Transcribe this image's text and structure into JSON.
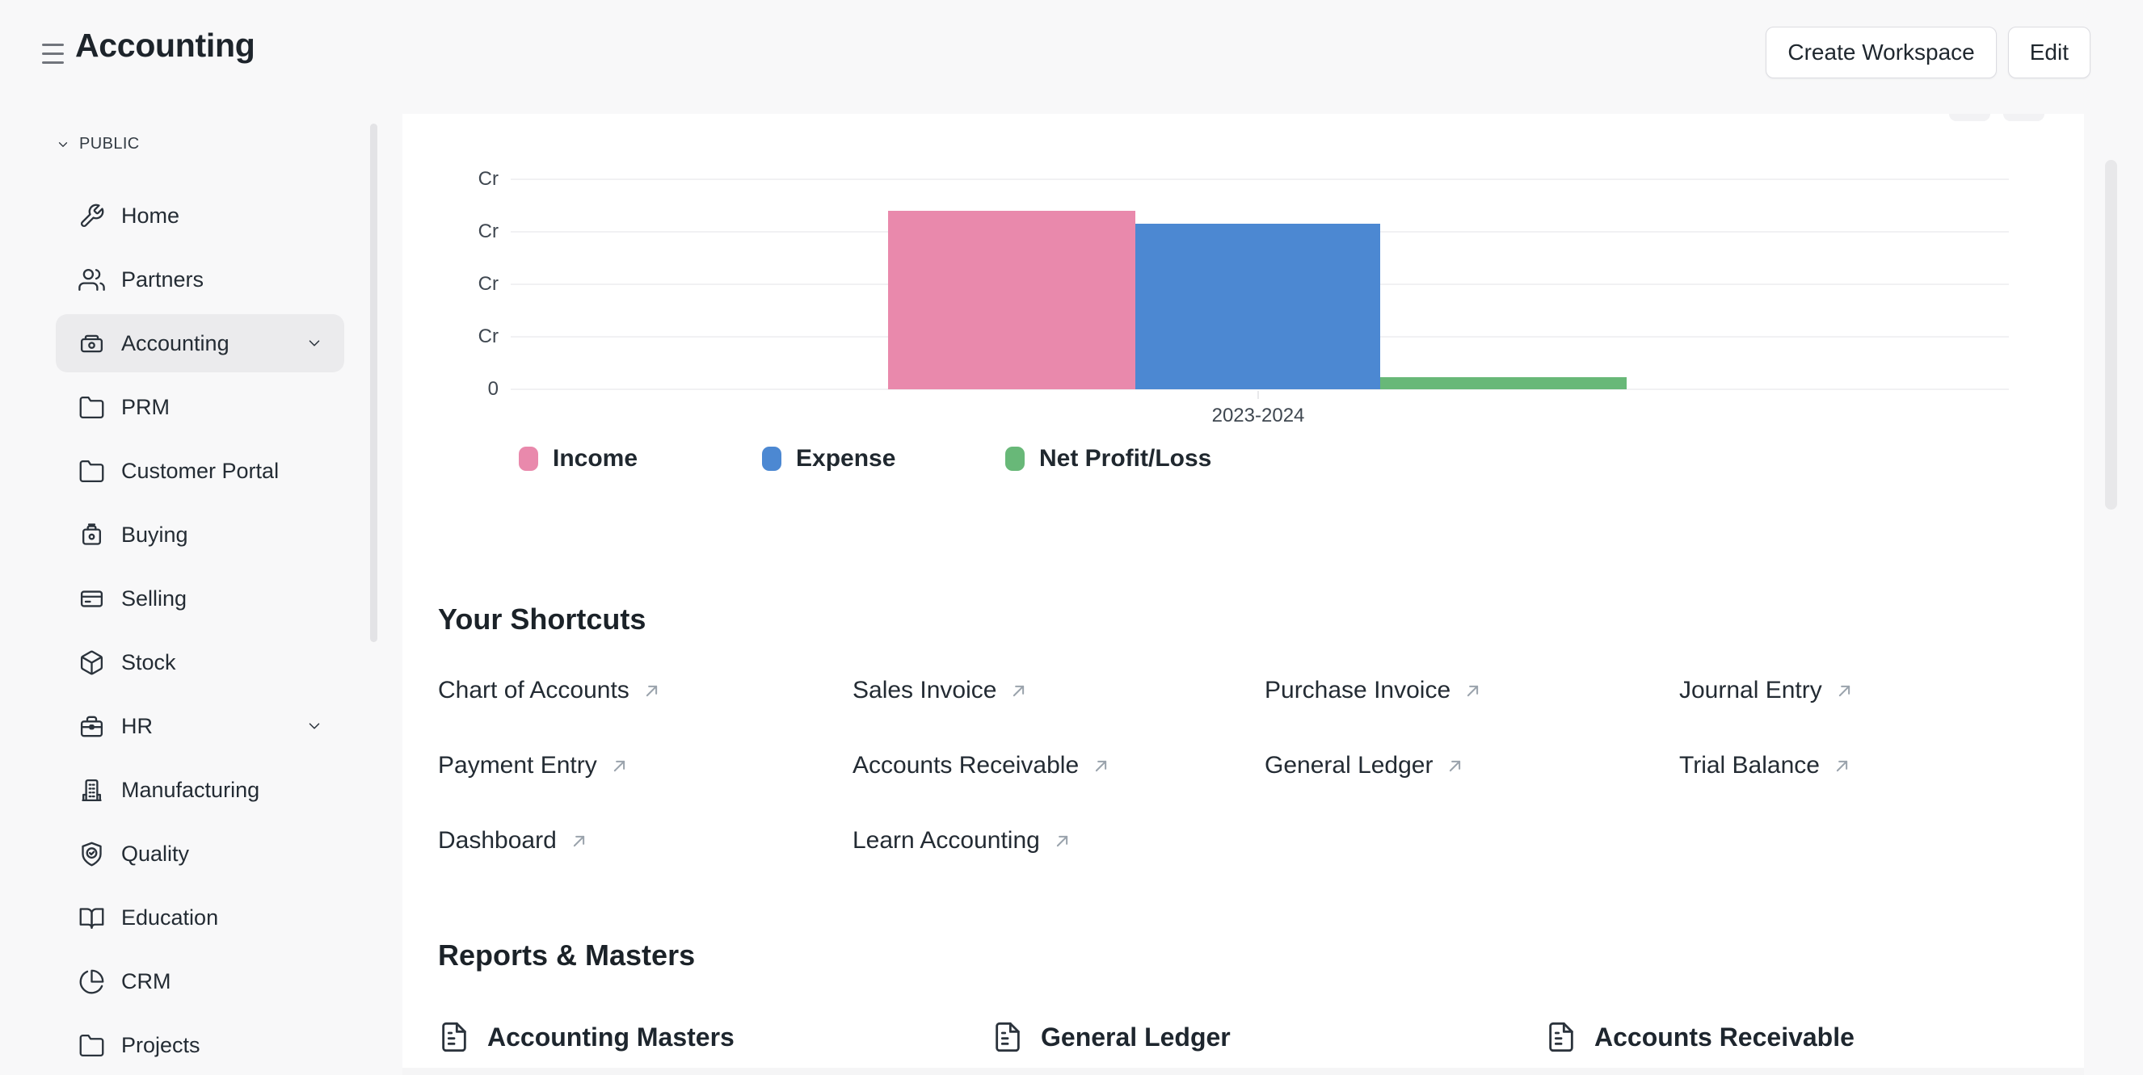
{
  "header": {
    "title": "Accounting",
    "buttons": [
      {
        "label": "Create Workspace"
      },
      {
        "label": "Edit"
      }
    ]
  },
  "sidebar": {
    "section_label": "PUBLIC",
    "items": [
      {
        "label": "Home",
        "icon": "tools",
        "selected": false,
        "expandable": false
      },
      {
        "label": "Partners",
        "icon": "users",
        "selected": false,
        "expandable": false
      },
      {
        "label": "Accounting",
        "icon": "money",
        "selected": true,
        "expandable": true
      },
      {
        "label": "PRM",
        "icon": "folder",
        "selected": false,
        "expandable": false
      },
      {
        "label": "Customer Portal",
        "icon": "folder",
        "selected": false,
        "expandable": false
      },
      {
        "label": "Buying",
        "icon": "shopping-bag",
        "selected": false,
        "expandable": false
      },
      {
        "label": "Selling",
        "icon": "credit-card",
        "selected": false,
        "expandable": false
      },
      {
        "label": "Stock",
        "icon": "box",
        "selected": false,
        "expandable": false
      },
      {
        "label": "HR",
        "icon": "briefcase",
        "selected": false,
        "expandable": true
      },
      {
        "label": "Manufacturing",
        "icon": "building",
        "selected": false,
        "expandable": false
      },
      {
        "label": "Quality",
        "icon": "shield-check",
        "selected": false,
        "expandable": false
      },
      {
        "label": "Education",
        "icon": "book-open",
        "selected": false,
        "expandable": false
      },
      {
        "label": "CRM",
        "icon": "pie-chart",
        "selected": false,
        "expandable": false
      },
      {
        "label": "Projects",
        "icon": "folder",
        "selected": false,
        "expandable": false
      }
    ]
  },
  "chart_data": {
    "type": "bar",
    "title": "",
    "categories": [
      "2023-2024"
    ],
    "series": [
      {
        "name": "Income",
        "color": "#e989ac",
        "values": [
          3.4
        ]
      },
      {
        "name": "Expense",
        "color": "#4c88d2",
        "values": [
          3.15
        ]
      },
      {
        "name": "Net Profit/Loss",
        "color": "#68b878",
        "values": [
          0.23
        ]
      }
    ],
    "y_axis": {
      "tick_labels_visible": [
        "Cr",
        "Cr",
        "Cr",
        "Cr",
        "0"
      ],
      "unit": "Cr",
      "note": "numeric tick values are clipped off-screen; only the Cr unit suffix and 0 are visible",
      "range_units": [
        0,
        4
      ]
    },
    "xlabel": "2023-2024",
    "grid": "horizontal",
    "legend_position": "bottom"
  },
  "shortcuts": {
    "heading": "Your Shortcuts",
    "links": [
      "Chart of Accounts",
      "Sales Invoice",
      "Purchase Invoice",
      "Journal Entry",
      "Payment Entry",
      "Accounts Receivable",
      "General Ledger",
      "Trial Balance",
      "Dashboard",
      "Learn Accounting"
    ]
  },
  "reports": {
    "heading": "Reports & Masters",
    "items": [
      {
        "label": "Accounting Masters",
        "icon": "file-text"
      },
      {
        "label": "General Ledger",
        "icon": "file-text"
      },
      {
        "label": "Accounts Receivable",
        "icon": "file-text"
      }
    ]
  }
}
